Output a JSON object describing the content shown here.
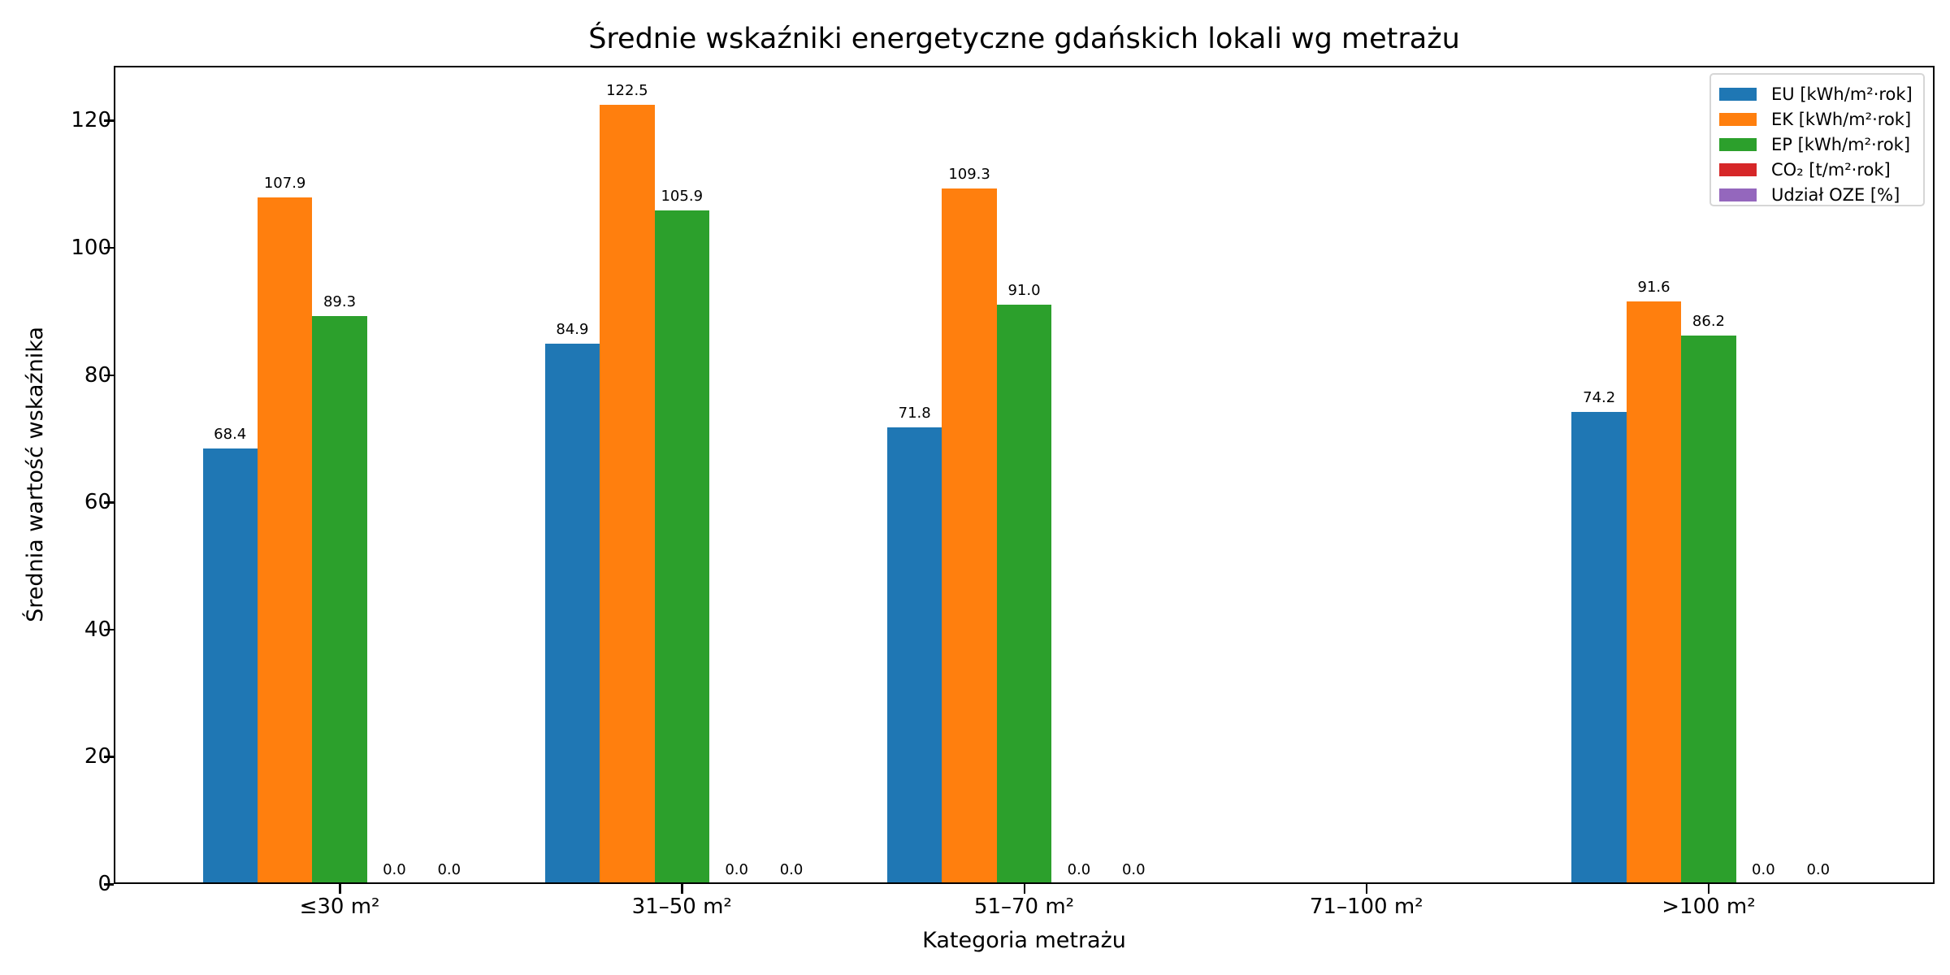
{
  "chart_data": {
    "type": "bar",
    "title": "Średnie wskaźniki energetyczne gdańskich lokali wg metrażu",
    "xlabel": "Kategoria metrażu",
    "ylabel": "Średnia wartość wskaźnika",
    "categories": [
      "≤30 m²",
      "31–50 m²",
      "51–70 m²",
      "71–100 m²",
      ">100 m²"
    ],
    "series": [
      {
        "name": "EU [kWh/m²·rok]",
        "color": "#1f77b4",
        "values": [
          68.4,
          84.9,
          71.8,
          null,
          74.2
        ],
        "labels": [
          "68.4",
          "84.9",
          "71.8",
          null,
          "74.2"
        ]
      },
      {
        "name": "EK [kWh/m²·rok]",
        "color": "#ff7f0e",
        "values": [
          107.9,
          122.5,
          109.3,
          null,
          91.6
        ],
        "labels": [
          "107.9",
          "122.5",
          "109.3",
          null,
          "91.6"
        ]
      },
      {
        "name": "EP [kWh/m²·rok]",
        "color": "#2ca02c",
        "values": [
          89.3,
          105.9,
          91.0,
          null,
          86.2
        ],
        "labels": [
          "89.3",
          "105.9",
          "91.0",
          null,
          "86.2"
        ]
      },
      {
        "name": "CO₂ [t/m²·rok]",
        "color": "#d62728",
        "values": [
          0.0,
          0.0,
          0.0,
          null,
          0.0
        ],
        "labels": [
          "0.0",
          "0.0",
          "0.0",
          null,
          "0.0"
        ]
      },
      {
        "name": "Udział OZE [%]",
        "color": "#9467bd",
        "values": [
          0.0,
          0.0,
          0.0,
          null,
          0.0
        ],
        "labels": [
          "0.0",
          "0.0",
          "0.0",
          null,
          "0.0"
        ]
      }
    ],
    "yticks": [
      0,
      20,
      40,
      60,
      80,
      100,
      120
    ],
    "ytick_labels": [
      "0",
      "20",
      "40",
      "60",
      "80",
      "100",
      "120"
    ],
    "ylim": [
      0,
      128.6
    ],
    "grid": false,
    "legend_position": "upper right"
  }
}
